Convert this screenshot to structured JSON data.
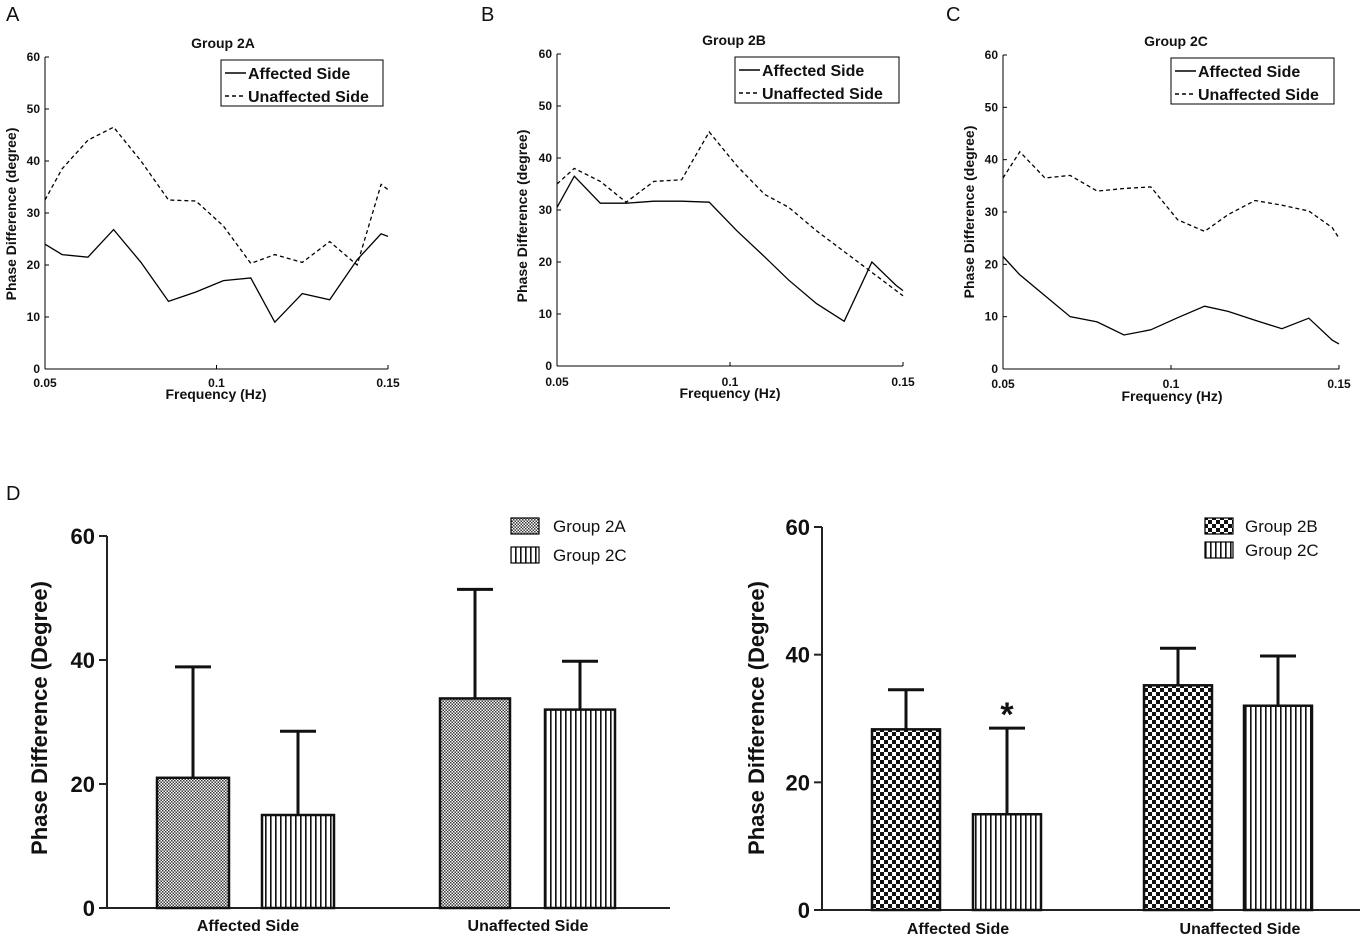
{
  "chart_data": [
    {
      "panel": "A",
      "type": "line",
      "title": "Group 2A",
      "xlabel": "Frequency (Hz)",
      "ylabel": "Phase Difference (degree)",
      "xlim": [
        0.05,
        0.15
      ],
      "ylim": [
        0,
        60
      ],
      "xticks": [
        0.05,
        0.1,
        0.15
      ],
      "xtick_labels": [
        "0.05",
        "0.1",
        "0.15"
      ],
      "yticks": [
        0,
        10,
        20,
        30,
        40,
        50,
        60
      ],
      "ytick_labels": [
        "0",
        "10",
        "20",
        "30",
        "40",
        "50",
        "60"
      ],
      "legend_position": "top-right",
      "series": [
        {
          "name": "Affected Side",
          "style": "solid",
          "x": [
            0.05,
            0.055,
            0.0625,
            0.07,
            0.078,
            0.086,
            0.094,
            0.102,
            0.11,
            0.117,
            0.125,
            0.133,
            0.141,
            0.148,
            0.15
          ],
          "y": [
            24,
            22,
            21.5,
            26.8,
            20.5,
            13,
            14.8,
            17,
            17.5,
            9,
            14.5,
            13.3,
            21,
            26,
            25.5
          ]
        },
        {
          "name": "Unaffected Side",
          "style": "dashed",
          "x": [
            0.05,
            0.055,
            0.0625,
            0.07,
            0.078,
            0.086,
            0.094,
            0.102,
            0.11,
            0.117,
            0.125,
            0.133,
            0.141,
            0.148,
            0.15
          ],
          "y": [
            32.5,
            38.5,
            44,
            46.5,
            40,
            32.5,
            32.3,
            27.5,
            20.3,
            22,
            20.5,
            24.5,
            20,
            35.5,
            34.5
          ]
        }
      ]
    },
    {
      "panel": "B",
      "type": "line",
      "title": "Group 2B",
      "xlabel": "Frequency (Hz)",
      "ylabel": "Phase Difference (degree)",
      "xlim": [
        0.05,
        0.15
      ],
      "ylim": [
        0,
        60
      ],
      "xticks": [
        0.05,
        0.1,
        0.15
      ],
      "xtick_labels": [
        "0.05",
        "0.1",
        "0.15"
      ],
      "yticks": [
        0,
        10,
        20,
        30,
        40,
        50,
        60
      ],
      "ytick_labels": [
        "0",
        "10",
        "20",
        "30",
        "40",
        "50",
        "60"
      ],
      "legend_position": "top-right",
      "series": [
        {
          "name": "Affected Side",
          "style": "solid",
          "x": [
            0.05,
            0.055,
            0.0625,
            0.07,
            0.078,
            0.086,
            0.094,
            0.102,
            0.11,
            0.117,
            0.125,
            0.133,
            0.141,
            0.148,
            0.15
          ],
          "y": [
            30.5,
            36.5,
            31.3,
            31.3,
            31.7,
            31.7,
            31.5,
            26,
            21,
            16.5,
            12,
            8.6,
            20,
            15.5,
            14.5
          ]
        },
        {
          "name": "Unaffected Side",
          "style": "dashed",
          "x": [
            0.05,
            0.055,
            0.0625,
            0.07,
            0.078,
            0.086,
            0.094,
            0.102,
            0.11,
            0.117,
            0.125,
            0.133,
            0.141,
            0.148,
            0.15
          ],
          "y": [
            35,
            38,
            35.5,
            31.5,
            35.5,
            35.8,
            45,
            38.5,
            33,
            30.5,
            26,
            22,
            18,
            14.5,
            13.5
          ]
        }
      ]
    },
    {
      "panel": "C",
      "type": "line",
      "title": "Group 2C",
      "xlabel": "Frequency (Hz)",
      "ylabel": "Phase Difference (degree)",
      "xlim": [
        0.05,
        0.15
      ],
      "ylim": [
        0,
        60
      ],
      "xticks": [
        0.05,
        0.1,
        0.15
      ],
      "xtick_labels": [
        "0.05",
        "0.1",
        "0.15"
      ],
      "yticks": [
        0,
        10,
        20,
        30,
        40,
        50,
        60
      ],
      "ytick_labels": [
        "0",
        "10",
        "20",
        "30",
        "40",
        "50",
        "60"
      ],
      "legend_position": "top-right",
      "series": [
        {
          "name": "Affected Side",
          "style": "solid",
          "x": [
            0.05,
            0.055,
            0.0625,
            0.07,
            0.078,
            0.086,
            0.094,
            0.102,
            0.11,
            0.117,
            0.125,
            0.133,
            0.141,
            0.148,
            0.15
          ],
          "y": [
            21.5,
            18,
            14,
            10,
            9,
            6.5,
            7.5,
            9.8,
            12,
            11,
            9.3,
            7.7,
            9.7,
            5.5,
            4.8
          ]
        },
        {
          "name": "Unaffected Side",
          "style": "dashed",
          "x": [
            0.05,
            0.055,
            0.0625,
            0.07,
            0.078,
            0.086,
            0.094,
            0.102,
            0.11,
            0.117,
            0.125,
            0.133,
            0.141,
            0.148,
            0.15
          ],
          "y": [
            36.5,
            41.5,
            36.5,
            37,
            34,
            34.5,
            34.8,
            28.5,
            26.3,
            29.5,
            32.2,
            31.3,
            30.2,
            27,
            25
          ]
        }
      ]
    },
    {
      "panel": "D-left",
      "type": "bar",
      "title": "",
      "xlabel": "",
      "ylabel": "Phase Difference (Degree)",
      "ylim": [
        0,
        60
      ],
      "yticks": [
        0,
        20,
        40,
        60
      ],
      "ytick_labels": [
        "0",
        "20",
        "40",
        "60"
      ],
      "categories": [
        "Affected Side",
        "Unaffected Side"
      ],
      "legend_position": "top-right",
      "series": [
        {
          "name": "Group 2A",
          "pattern": "fine-crosshatch",
          "values": [
            21,
            33.8
          ],
          "error": [
            17.9,
            17.6
          ]
        },
        {
          "name": "Group 2C",
          "pattern": "vertical-lines",
          "values": [
            15,
            32
          ],
          "error": [
            13.5,
            7.8
          ]
        }
      ],
      "annotations": []
    },
    {
      "panel": "D-right",
      "type": "bar",
      "title": "",
      "xlabel": "",
      "ylabel": "Phase Difference (Degree)",
      "ylim": [
        0,
        60
      ],
      "yticks": [
        0,
        20,
        40,
        60
      ],
      "ytick_labels": [
        "0",
        "20",
        "40",
        "60"
      ],
      "categories": [
        "Affected Side",
        "Unaffected Side"
      ],
      "legend_position": "top-right",
      "series": [
        {
          "name": "Group 2B",
          "pattern": "checkerboard",
          "values": [
            28.3,
            35.2
          ],
          "error": [
            6.2,
            5.8
          ]
        },
        {
          "name": "Group 2C",
          "pattern": "vertical-lines",
          "values": [
            15,
            32
          ],
          "error": [
            13.5,
            7.8
          ]
        }
      ],
      "annotations": [
        {
          "text": "*",
          "category": "Affected Side",
          "series": "Group 2C"
        }
      ]
    }
  ],
  "panel_labels": [
    "A",
    "B",
    "C",
    "D"
  ]
}
